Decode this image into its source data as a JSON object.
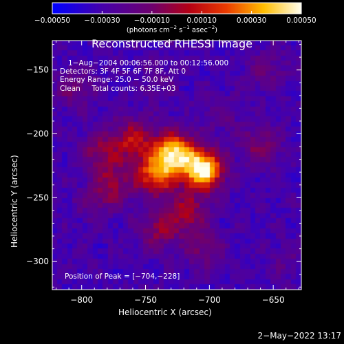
{
  "chart_data": {
    "type": "heatmap",
    "title": "Reconstructed RHESSI Image",
    "xlabel": "Heliocentric X (arcsec)",
    "ylabel": "Heliocentric Y (arcsec)",
    "xlim": [
      -823,
      -628
    ],
    "ylim": [
      -322,
      -127
    ],
    "xticks": [
      -800,
      -750,
      -700,
      -650
    ],
    "yticks": [
      -150,
      -200,
      -250,
      -300
    ],
    "x_tick_labels": [
      "−800",
      "−750",
      "−700",
      "−650"
    ],
    "y_tick_labels": [
      "−150",
      "−200",
      "−250",
      "−300"
    ],
    "colorbar": {
      "range": [
        -0.0005,
        0.0005
      ],
      "colormap": "rainbow-like (blue → purple → red → orange → yellow → white)",
      "ticks": [
        -0.0005,
        -0.0003,
        -0.0001,
        0.0001,
        0.0003,
        0.0005
      ],
      "tick_labels": [
        "−0.00050",
        "−0.00030",
        "−0.00010",
        "0.00010",
        "0.00030",
        "0.00050"
      ],
      "unit_parts": {
        "a": "(photons cm",
        "b": "−2",
        "c": " s",
        "d": "−1",
        "e": " asec",
        "f": "−2",
        "g": ")"
      }
    },
    "annotations": [
      "1−Aug−2004 00:06:56.000 to 00:12:56.000",
      "Detectors: 3F 4F 5F 6F 7F 8F, Att 0",
      "Energy Range: 25.0 − 50.0 keV",
      "Clean     Total counts: 6.35E+03"
    ],
    "peak_label": "Position of Peak = [−704,−228]",
    "peak_position": [
      -704,
      -228
    ],
    "sources": [
      {
        "x": -705,
        "y": -228,
        "level": 1.0
      },
      {
        "x": -728,
        "y": -215,
        "level": 0.88
      },
      {
        "x": -742,
        "y": -232,
        "level": 0.7
      },
      {
        "x": -760,
        "y": -205,
        "level": 0.55
      },
      {
        "x": -785,
        "y": -215,
        "level": 0.45
      },
      {
        "x": -775,
        "y": -240,
        "level": 0.45
      },
      {
        "x": -718,
        "y": -262,
        "level": 0.5
      },
      {
        "x": -740,
        "y": -275,
        "level": 0.45
      },
      {
        "x": -705,
        "y": -290,
        "level": 0.38
      },
      {
        "x": -805,
        "y": -165,
        "level": 0.38
      },
      {
        "x": -790,
        "y": -255,
        "level": 0.32
      },
      {
        "x": -660,
        "y": -210,
        "level": 0.42
      },
      {
        "x": -655,
        "y": -150,
        "level": 0.35
      },
      {
        "x": -740,
        "y": -160,
        "level": 0.3
      },
      {
        "x": -690,
        "y": -185,
        "level": 0.3
      },
      {
        "x": -640,
        "y": -300,
        "level": 0.28
      }
    ]
  },
  "footer": {
    "timestamp": "2−May−2022 13:17"
  }
}
